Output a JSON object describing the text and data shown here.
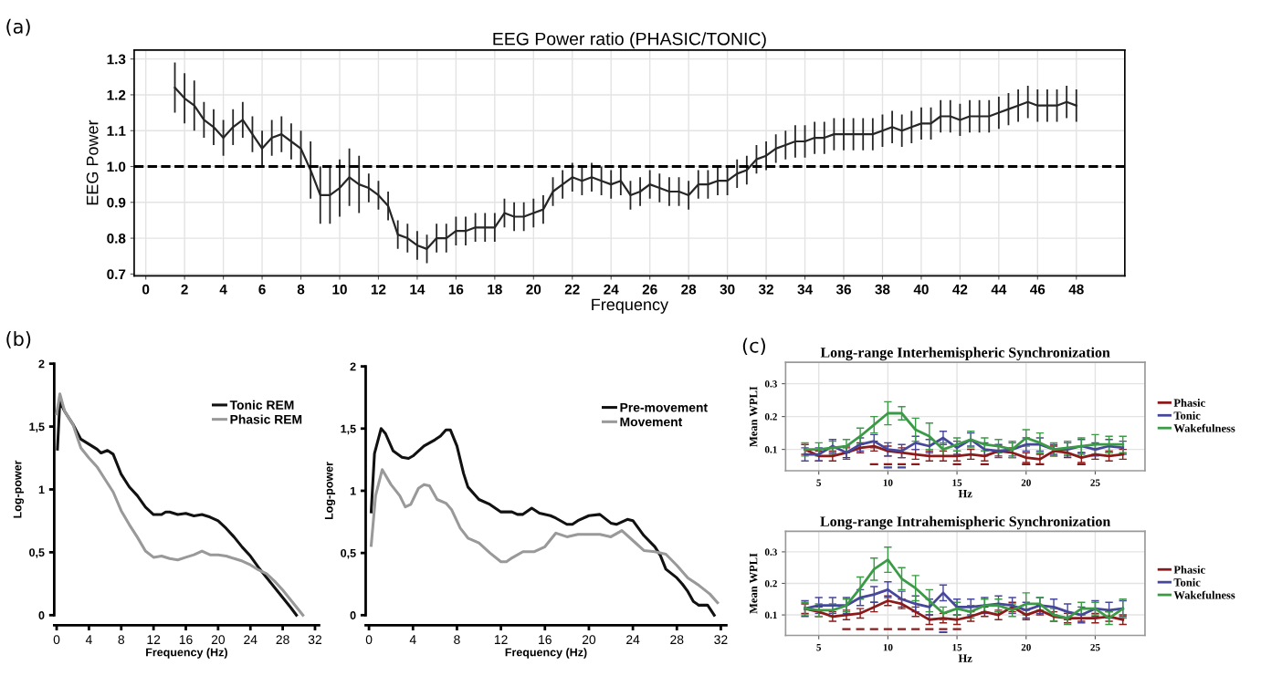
{
  "chart_data": [
    {
      "type": "line",
      "title": "EEG Power ratio (PHASIC/TONIC)",
      "xlabel": "Frequency",
      "ylabel": "EEG Power",
      "annotations": [
        "(a)"
      ],
      "x": [
        1.5,
        2,
        2.5,
        3,
        3.5,
        4,
        4.5,
        5,
        5.5,
        6,
        6.5,
        7,
        7.5,
        8,
        8.5,
        9,
        9.5,
        10,
        10.5,
        11,
        11.5,
        12,
        12.5,
        13,
        13.5,
        14,
        14.5,
        15,
        15.5,
        16,
        16.5,
        17,
        17.5,
        18,
        18.5,
        19,
        19.5,
        20,
        20.5,
        21,
        21.5,
        22,
        22.5,
        23,
        23.5,
        24,
        24.5,
        25,
        25.5,
        26,
        26.5,
        27,
        27.5,
        28,
        28.5,
        29,
        29.5,
        30,
        30.5,
        31,
        31.5,
        32,
        32.5,
        33,
        33.5,
        34,
        34.5,
        35,
        35.5,
        36,
        36.5,
        37,
        37.5,
        38,
        38.5,
        39,
        39.5,
        40,
        40.5,
        41,
        41.5,
        42,
        42.5,
        43,
        43.5,
        44,
        44.5,
        45,
        45.5,
        46,
        46.5,
        47,
        47.5,
        48
      ],
      "series": [
        {
          "color": "#262626",
          "values": [
            1.22,
            1.19,
            1.17,
            1.13,
            1.11,
            1.08,
            1.11,
            1.13,
            1.09,
            1.05,
            1.08,
            1.09,
            1.07,
            1.05,
            0.99,
            0.92,
            0.92,
            0.94,
            0.97,
            0.95,
            0.94,
            0.92,
            0.89,
            0.81,
            0.8,
            0.78,
            0.77,
            0.8,
            0.8,
            0.82,
            0.82,
            0.83,
            0.83,
            0.83,
            0.87,
            0.86,
            0.86,
            0.87,
            0.88,
            0.93,
            0.95,
            0.97,
            0.96,
            0.97,
            0.96,
            0.95,
            0.96,
            0.92,
            0.93,
            0.95,
            0.94,
            0.93,
            0.93,
            0.92,
            0.95,
            0.95,
            0.96,
            0.96,
            0.98,
            0.99,
            1.02,
            1.03,
            1.05,
            1.06,
            1.07,
            1.07,
            1.08,
            1.08,
            1.09,
            1.09,
            1.09,
            1.09,
            1.09,
            1.1,
            1.11,
            1.1,
            1.11,
            1.12,
            1.12,
            1.14,
            1.14,
            1.13,
            1.14,
            1.14,
            1.14,
            1.15,
            1.16,
            1.17,
            1.18,
            1.17,
            1.17,
            1.17,
            1.18,
            1.17
          ],
          "errors": [
            0.07,
            0.07,
            0.07,
            0.05,
            0.05,
            0.05,
            0.05,
            0.05,
            0.05,
            0.05,
            0.05,
            0.05,
            0.05,
            0.05,
            0.08,
            0.08,
            0.08,
            0.08,
            0.08,
            0.08,
            0.04,
            0.04,
            0.04,
            0.04,
            0.04,
            0.04,
            0.04,
            0.04,
            0.04,
            0.04,
            0.04,
            0.04,
            0.04,
            0.04,
            0.04,
            0.04,
            0.04,
            0.04,
            0.04,
            0.04,
            0.04,
            0.04,
            0.04,
            0.04,
            0.04,
            0.04,
            0.04,
            0.04,
            0.04,
            0.04,
            0.04,
            0.04,
            0.04,
            0.04,
            0.04,
            0.04,
            0.04,
            0.04,
            0.04,
            0.04,
            0.04,
            0.04,
            0.04,
            0.04,
            0.045,
            0.045,
            0.045,
            0.045,
            0.045,
            0.045,
            0.045,
            0.045,
            0.045,
            0.045,
            0.045,
            0.045,
            0.045,
            0.045,
            0.045,
            0.045,
            0.045,
            0.045,
            0.045,
            0.045,
            0.045,
            0.045,
            0.045,
            0.045,
            0.045,
            0.045,
            0.045,
            0.045,
            0.045,
            0.045
          ]
        }
      ],
      "xlim": [
        -0.6,
        50.5
      ],
      "ylim": [
        0.695,
        1.325
      ],
      "xticks": [
        0,
        2,
        4,
        6,
        8,
        10,
        12,
        14,
        16,
        18,
        20,
        22,
        24,
        26,
        28,
        30,
        32,
        34,
        36,
        38,
        40,
        42,
        44,
        46,
        48
      ],
      "yticks": [
        0.7,
        0.8,
        0.9,
        {
          "value": 1.0,
          "label": "1.0"
        },
        1.1,
        1.2,
        1.3
      ],
      "ref_lines": [
        {
          "axis": "y",
          "value": 1.0,
          "color": "#000000",
          "line_style": "dashed"
        }
      ],
      "grid": true,
      "marker": "none",
      "line_style": "solid"
    },
    {
      "type": "line",
      "xlabel": "Frequency (Hz)",
      "ylabel": "Log-power",
      "annotations": [
        "(b)"
      ],
      "series": [
        {
          "name": "Tonic REM",
          "color": "#111111",
          "x": [
            0.1,
            0.4,
            1,
            2,
            3,
            4,
            5,
            5.5,
            6.3,
            7,
            8,
            9,
            10,
            11,
            12,
            13,
            13.5,
            14,
            15,
            16,
            17,
            18,
            19,
            20,
            21,
            22,
            23,
            24,
            25,
            26,
            27,
            28,
            29,
            29.7
          ],
          "values": [
            1.32,
            1.7,
            1.62,
            1.52,
            1.4,
            1.36,
            1.32,
            1.29,
            1.31,
            1.28,
            1.12,
            1.02,
            0.95,
            0.86,
            0.8,
            0.8,
            0.82,
            0.82,
            0.8,
            0.81,
            0.79,
            0.8,
            0.78,
            0.75,
            0.69,
            0.62,
            0.54,
            0.47,
            0.38,
            0.3,
            0.22,
            0.14,
            0.06,
            0.0
          ]
        },
        {
          "name": "Phasic REM",
          "color": "#999999",
          "x": [
            0,
            0.4,
            1,
            2,
            3,
            4,
            5,
            6,
            7,
            8,
            9,
            10,
            11,
            12,
            13,
            14,
            15,
            16,
            17,
            18,
            19,
            20,
            21,
            22,
            23,
            24,
            25,
            26,
            27,
            28,
            29,
            30,
            30.5
          ],
          "values": [
            1.6,
            1.76,
            1.62,
            1.52,
            1.33,
            1.25,
            1.18,
            1.08,
            0.98,
            0.83,
            0.72,
            0.62,
            0.51,
            0.46,
            0.47,
            0.45,
            0.44,
            0.46,
            0.48,
            0.51,
            0.48,
            0.48,
            0.47,
            0.45,
            0.43,
            0.4,
            0.36,
            0.33,
            0.27,
            0.2,
            0.12,
            0.04,
            0.0
          ]
        }
      ],
      "xlim": [
        -0.3,
        32.5
      ],
      "ylim": [
        0,
        2
      ],
      "xticks": [
        0,
        4,
        8,
        12,
        16,
        20,
        24,
        28,
        32
      ],
      "yticks": [
        0,
        {
          "value": 0.5,
          "label": "0,5"
        },
        1,
        {
          "value": 1.5,
          "label": "1,5"
        },
        2
      ],
      "legend": "top right",
      "marker": "none",
      "line_style": "solid"
    },
    {
      "type": "line",
      "xlabel": "Frequency (Hz)",
      "ylabel": "Log-power",
      "series": [
        {
          "name": "Pre-movement",
          "color": "#111111",
          "x": [
            0.2,
            0.5,
            1.1,
            1.5,
            2.2,
            3,
            3.6,
            4,
            5,
            6,
            6.5,
            7,
            7.4,
            8,
            8.6,
            9,
            10,
            11,
            12,
            13,
            13.5,
            14,
            14.8,
            15.5,
            16.5,
            17,
            18,
            18.5,
            19,
            20,
            21,
            22,
            22.5,
            23.5,
            24,
            25,
            26,
            26.5,
            27,
            28,
            28.5,
            29,
            29.5,
            30,
            30.8,
            31.4
          ],
          "values": [
            0.83,
            1.3,
            1.5,
            1.46,
            1.32,
            1.27,
            1.26,
            1.28,
            1.36,
            1.41,
            1.44,
            1.49,
            1.49,
            1.36,
            1.14,
            1.03,
            0.93,
            0.89,
            0.83,
            0.83,
            0.81,
            0.81,
            0.86,
            0.82,
            0.8,
            0.78,
            0.73,
            0.73,
            0.76,
            0.8,
            0.81,
            0.74,
            0.73,
            0.77,
            0.76,
            0.64,
            0.55,
            0.48,
            0.37,
            0.3,
            0.25,
            0.19,
            0.11,
            0.08,
            0.08,
            0.0
          ]
        },
        {
          "name": "Movement",
          "color": "#999999",
          "x": [
            0.2,
            0.6,
            1.2,
            2,
            2.8,
            3.3,
            3.8,
            4.5,
            5,
            5.5,
            6.2,
            7,
            7.5,
            8.3,
            9,
            10,
            11,
            12,
            12.5,
            13,
            14,
            15,
            16,
            17,
            18,
            19,
            20,
            21,
            22,
            23,
            24,
            25,
            26,
            27,
            28,
            29,
            30,
            31,
            31.7
          ],
          "values": [
            0.56,
            0.96,
            1.17,
            1.05,
            0.96,
            0.87,
            0.89,
            1.02,
            1.05,
            1.04,
            0.93,
            0.9,
            0.85,
            0.7,
            0.62,
            0.58,
            0.5,
            0.43,
            0.43,
            0.46,
            0.51,
            0.51,
            0.55,
            0.66,
            0.63,
            0.65,
            0.65,
            0.65,
            0.63,
            0.68,
            0.6,
            0.52,
            0.51,
            0.49,
            0.4,
            0.3,
            0.24,
            0.17,
            0.1
          ]
        }
      ],
      "xlim": [
        -0.3,
        32.5
      ],
      "ylim": [
        0,
        2
      ],
      "xticks": [
        0,
        4,
        8,
        12,
        16,
        20,
        24,
        28,
        32
      ],
      "yticks": [
        0,
        {
          "value": 0.5,
          "label": "0,5"
        },
        1,
        {
          "value": 1.5,
          "label": "1,5"
        },
        2
      ],
      "legend": "top right",
      "marker": "none",
      "line_style": "solid"
    },
    {
      "type": "line",
      "title": "Long-range Interhemispheric Synchronization",
      "xlabel": "Hz",
      "ylabel": "Mean WPLI",
      "annotations": [
        "(c)"
      ],
      "x": [
        4,
        5,
        6,
        7,
        8,
        9,
        10,
        11,
        12,
        13,
        14,
        15,
        16,
        17,
        18,
        19,
        20,
        21,
        22,
        23,
        24,
        25,
        26,
        27
      ],
      "series": [
        {
          "name": "Phasic",
          "color": "#8b1a1a",
          "values": [
            0.1,
            0.08,
            0.08,
            0.09,
            0.105,
            0.11,
            0.095,
            0.09,
            0.085,
            0.08,
            0.08,
            0.08,
            0.085,
            0.08,
            0.095,
            0.09,
            0.075,
            0.07,
            0.095,
            0.09,
            0.075,
            0.085,
            0.08,
            0.085
          ],
          "errors": [
            0.015,
            0.015,
            0.015,
            0.015,
            0.015,
            0.015,
            0.015,
            0.015,
            0.015,
            0.015,
            0.015,
            0.015,
            0.015,
            0.015,
            0.015,
            0.015,
            0.015,
            0.015,
            0.015,
            0.015,
            0.015,
            0.015,
            0.015,
            0.015
          ]
        },
        {
          "name": "Tonic",
          "color": "#46469b",
          "values": [
            0.085,
            0.085,
            0.11,
            0.09,
            0.115,
            0.125,
            0.1,
            0.095,
            0.12,
            0.11,
            0.135,
            0.105,
            0.13,
            0.1,
            0.095,
            0.1,
            0.115,
            0.115,
            0.1,
            0.1,
            0.11,
            0.1,
            0.11,
            0.105
          ],
          "errors": [
            0.02,
            0.02,
            0.02,
            0.02,
            0.02,
            0.02,
            0.02,
            0.02,
            0.02,
            0.02,
            0.02,
            0.02,
            0.02,
            0.02,
            0.02,
            0.02,
            0.02,
            0.02,
            0.015,
            0.02,
            0.02,
            0.02,
            0.02,
            0.02
          ]
        },
        {
          "name": "Wakefulness",
          "color": "#3a9a46",
          "values": [
            0.1,
            0.1,
            0.105,
            0.11,
            0.14,
            0.175,
            0.21,
            0.21,
            0.16,
            0.14,
            0.1,
            0.115,
            0.13,
            0.115,
            0.11,
            0.1,
            0.135,
            0.12,
            0.1,
            0.105,
            0.11,
            0.115,
            0.115,
            0.115
          ],
          "errors": [
            0.02,
            0.02,
            0.02,
            0.02,
            0.025,
            0.025,
            0.035,
            0.02,
            0.035,
            0.04,
            0.02,
            0.02,
            0.025,
            0.02,
            0.02,
            0.025,
            0.025,
            0.03,
            0.02,
            0.02,
            0.025,
            0.03,
            0.025,
            0.025
          ]
        },
        {
          "type": "bar",
          "color": "#8b1a1a",
          "x": [
            9,
            10,
            11,
            12,
            15,
            17,
            20,
            21,
            24
          ],
          "base": [
            0.052,
            0.052,
            0.052,
            0.052,
            0.052,
            0.052,
            0.052,
            0.052,
            0.052
          ],
          "values": [
            0.006,
            0.006,
            0.006,
            0.006,
            0.006,
            0.006,
            0.006,
            0.006,
            0.006
          ]
        },
        {
          "type": "bar",
          "color": "#46469b",
          "x": [
            10,
            11
          ],
          "base": [
            0.042,
            0.042
          ],
          "values": [
            0.006,
            0.006
          ]
        }
      ],
      "xlim": [
        2.6,
        28.6
      ],
      "ylim": [
        0.035,
        0.365
      ],
      "xticks": [
        5,
        10,
        15,
        20,
        25
      ],
      "yticks": [
        0.1,
        0.2,
        0.3
      ],
      "grid": true,
      "legend": "right",
      "marker": "none",
      "line_style": "solid"
    },
    {
      "type": "line",
      "title": "Long-range Intrahemispheric Synchronization",
      "xlabel": "Hz",
      "ylabel": "Mean WPLI",
      "x": [
        4,
        5,
        6,
        7,
        8,
        9,
        10,
        11,
        12,
        13,
        14,
        15,
        16,
        17,
        18,
        19,
        20,
        21,
        22,
        23,
        24,
        25,
        26,
        27
      ],
      "series": [
        {
          "name": "Phasic",
          "color": "#8b1a1a",
          "values": [
            0.12,
            0.11,
            0.095,
            0.1,
            0.105,
            0.125,
            0.145,
            0.135,
            0.11,
            0.085,
            0.09,
            0.085,
            0.095,
            0.11,
            0.1,
            0.125,
            0.1,
            0.115,
            0.095,
            0.09,
            0.09,
            0.09,
            0.095,
            0.085
          ],
          "errors": [
            0.015,
            0.015,
            0.015,
            0.015,
            0.015,
            0.015,
            0.015,
            0.015,
            0.015,
            0.015,
            0.015,
            0.015,
            0.015,
            0.015,
            0.015,
            0.015,
            0.015,
            0.015,
            0.015,
            0.015,
            0.01,
            0.015,
            0.015,
            0.015
          ]
        },
        {
          "name": "Tonic",
          "color": "#46469b",
          "values": [
            0.12,
            0.13,
            0.13,
            0.13,
            0.155,
            0.165,
            0.18,
            0.15,
            0.135,
            0.125,
            0.17,
            0.125,
            0.125,
            0.13,
            0.135,
            0.13,
            0.115,
            0.13,
            0.125,
            0.11,
            0.1,
            0.12,
            0.115,
            0.12
          ],
          "errors": [
            0.025,
            0.025,
            0.025,
            0.025,
            0.025,
            0.025,
            0.025,
            0.025,
            0.025,
            0.025,
            0.025,
            0.025,
            0.025,
            0.025,
            0.025,
            0.025,
            0.025,
            0.025,
            0.025,
            0.025,
            0.025,
            0.025,
            0.025,
            0.025
          ]
        },
        {
          "name": "Wakefulness",
          "color": "#3a9a46",
          "values": [
            0.12,
            0.115,
            0.115,
            0.13,
            0.185,
            0.245,
            0.275,
            0.215,
            0.185,
            0.145,
            0.105,
            0.12,
            0.11,
            0.13,
            0.13,
            0.115,
            0.135,
            0.135,
            0.1,
            0.09,
            0.12,
            0.12,
            0.09,
            0.12
          ],
          "errors": [
            0.02,
            0.02,
            0.02,
            0.02,
            0.035,
            0.035,
            0.04,
            0.035,
            0.04,
            0.035,
            0.02,
            0.02,
            0.02,
            0.02,
            0.02,
            0.02,
            0.035,
            0.02,
            0.02,
            0.02,
            0.02,
            0.02,
            0.02,
            0.03
          ]
        },
        {
          "type": "bar",
          "color": "#8b1a1a",
          "x": [
            7,
            8,
            9,
            10,
            11,
            12,
            13,
            14,
            15
          ],
          "base": [
            0.052,
            0.052,
            0.052,
            0.052,
            0.052,
            0.052,
            0.052,
            0.052,
            0.052
          ],
          "values": [
            0.006,
            0.006,
            0.006,
            0.006,
            0.006,
            0.006,
            0.006,
            0.006,
            0.006
          ]
        },
        {
          "type": "bar",
          "color": "#46469b",
          "x": [
            14
          ],
          "base": [
            0.042
          ],
          "values": [
            0.006
          ]
        }
      ],
      "xlim": [
        2.6,
        28.6
      ],
      "ylim": [
        0.035,
        0.365
      ],
      "xticks": [
        5,
        10,
        15,
        20,
        25
      ],
      "yticks": [
        0.1,
        0.2,
        0.3
      ],
      "grid": true,
      "legend": "right",
      "marker": "none",
      "line_style": "solid"
    }
  ]
}
